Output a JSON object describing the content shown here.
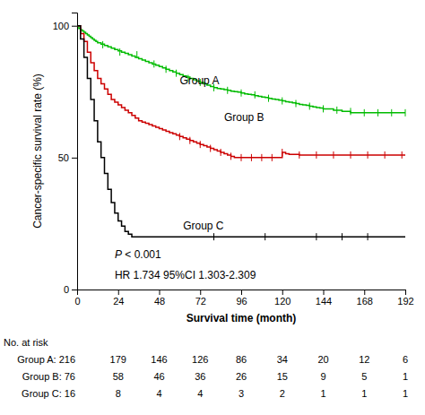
{
  "chart_data": {
    "type": "step",
    "xlabel": "Survival time (month)",
    "ylabel": "Cancer-specific survival rate (%)",
    "xlim": [
      0,
      192
    ],
    "ylim": [
      0,
      105
    ],
    "xticks": [
      0,
      24,
      48,
      72,
      96,
      120,
      144,
      168,
      192
    ],
    "yticks": [
      0,
      50,
      100
    ],
    "series": [
      {
        "name": "Group A",
        "color": "#00bb00",
        "label_x": 60,
        "label_y": 79,
        "x": [
          0,
          1,
          2,
          3,
          4,
          5,
          6,
          7,
          8,
          9,
          10,
          11,
          12,
          14,
          16,
          18,
          20,
          22,
          24,
          26,
          28,
          30,
          32,
          34,
          36,
          38,
          40,
          42,
          44,
          46,
          48,
          50,
          52,
          54,
          56,
          58,
          60,
          62,
          64,
          66,
          68,
          70,
          72,
          74,
          76,
          78,
          80,
          82,
          84,
          86,
          88,
          90,
          92,
          94,
          96,
          98,
          100,
          102,
          104,
          106,
          108,
          110,
          112,
          114,
          116,
          118,
          120,
          122,
          124,
          126,
          128,
          130,
          132,
          134,
          136,
          138,
          140,
          142,
          144,
          150,
          155,
          160,
          165,
          170,
          175,
          180,
          185,
          190,
          192
        ],
        "values": [
          100,
          99,
          98.5,
          98,
          97.5,
          97,
          96.5,
          96,
          95.5,
          95,
          94.5,
          94,
          93.5,
          93,
          92.5,
          92,
          91.5,
          91,
          90.5,
          90,
          89.5,
          89,
          88.5,
          88,
          87.5,
          87,
          86.5,
          86,
          85.5,
          85,
          84.5,
          84,
          83.5,
          83,
          82.5,
          82,
          81.5,
          81,
          80.5,
          80,
          79.5,
          79,
          78.5,
          78,
          77.5,
          77,
          76.5,
          76.2,
          76,
          75.8,
          75.5,
          75.2,
          75,
          74.8,
          74.5,
          74.2,
          74,
          73.8,
          73.5,
          73.2,
          73,
          72.8,
          72.5,
          72.2,
          72,
          71.8,
          71.5,
          71.2,
          71,
          70.8,
          70.5,
          70.2,
          70,
          69.8,
          69.5,
          69.2,
          69,
          68.8,
          68.5,
          68,
          67.5,
          67,
          67,
          67,
          67,
          67,
          67,
          67,
          67
        ],
        "censor_x": [
          15,
          25,
          35,
          45,
          52,
          58,
          65,
          72,
          80,
          88,
          96,
          104,
          112,
          120,
          128,
          136,
          144,
          152,
          160,
          168,
          176,
          184,
          192
        ],
        "censor_y": [
          92.8,
          90,
          89,
          85.5,
          83.5,
          82,
          80,
          78.5,
          76.5,
          75.5,
          74.5,
          73.8,
          72.5,
          71.5,
          70.5,
          69.5,
          68.5,
          68,
          67.5,
          67,
          67,
          67,
          67
        ]
      },
      {
        "name": "Group B",
        "color": "#cc0000",
        "label_x": 86,
        "label_y": 65,
        "x": [
          0,
          2,
          4,
          6,
          8,
          10,
          12,
          14,
          16,
          18,
          20,
          22,
          24,
          26,
          28,
          30,
          32,
          34,
          36,
          38,
          40,
          42,
          44,
          46,
          48,
          50,
          52,
          54,
          56,
          58,
          60,
          62,
          64,
          66,
          68,
          70,
          72,
          74,
          76,
          78,
          80,
          82,
          84,
          86,
          88,
          90,
          92,
          94,
          96,
          98,
          100,
          102,
          104,
          106,
          108,
          110,
          112,
          114,
          116,
          118,
          120,
          122,
          124,
          130,
          132,
          135,
          140,
          145,
          150,
          155,
          160,
          165,
          170,
          175,
          180,
          185,
          190,
          192
        ],
        "values": [
          100,
          97,
          94,
          90,
          86,
          83,
          80,
          78,
          76,
          74,
          72,
          71,
          70,
          69,
          68,
          67,
          66,
          65,
          64,
          63.5,
          63,
          62.5,
          62,
          61.5,
          61,
          60.5,
          60,
          59.5,
          59,
          58.5,
          58,
          57.5,
          57,
          56.5,
          56,
          55.5,
          55,
          54.5,
          54,
          53.5,
          53,
          52.5,
          52,
          51.5,
          51,
          50.5,
          50,
          50,
          50,
          50,
          50,
          50,
          50,
          50,
          50,
          50,
          50,
          50,
          50,
          50,
          52,
          51.5,
          51.2,
          51,
          51,
          51,
          51,
          51,
          51,
          51,
          51,
          51,
          51,
          51,
          51,
          51,
          51,
          51
        ],
        "censor_x": [
          60,
          66,
          72,
          78,
          84,
          90,
          96,
          102,
          108,
          114,
          120,
          130,
          140,
          150,
          160,
          170,
          180,
          190
        ],
        "censor_y": [
          58,
          56.5,
          55,
          53.5,
          52,
          50.5,
          50,
          50,
          50,
          50,
          52,
          51,
          51,
          51,
          51,
          51,
          51,
          51
        ]
      },
      {
        "name": "Group C",
        "color": "#000000",
        "label_x": 62,
        "label_y": 24,
        "x": [
          0,
          2,
          4,
          6,
          8,
          10,
          12,
          14,
          16,
          18,
          20,
          22,
          24,
          26,
          28,
          30,
          32,
          34,
          36,
          40,
          45,
          50,
          55,
          60,
          65,
          70,
          75,
          80,
          85,
          90,
          95,
          100,
          110,
          120,
          130,
          140,
          150,
          160,
          170,
          180,
          190,
          192
        ],
        "values": [
          100,
          95,
          88,
          80,
          72,
          64,
          56,
          50,
          44,
          38,
          33,
          29,
          26,
          24,
          22,
          21,
          20,
          20,
          20,
          20,
          20,
          20,
          20,
          20,
          20,
          20,
          20,
          20,
          20,
          20,
          20,
          20,
          20,
          20,
          20,
          20,
          20,
          20,
          20,
          20,
          20,
          20
        ],
        "censor_x": [
          80,
          110,
          140,
          155,
          170
        ],
        "censor_y": [
          20,
          20,
          20,
          20,
          20
        ]
      }
    ],
    "annotations": [
      {
        "parts": [
          "P",
          " < 0.001"
        ],
        "x": 22,
        "y": 13
      },
      {
        "text": "HR 1.734 95%CI 1.303-2.309",
        "x": 22,
        "y": 5
      }
    ],
    "risk_table": {
      "header": "No. at risk",
      "times": [
        24,
        48,
        72,
        96,
        120,
        144,
        168,
        192
      ],
      "rows": [
        {
          "label": "Group A: 216",
          "values": [
            179,
            146,
            126,
            86,
            34,
            20,
            12,
            6
          ]
        },
        {
          "label": "Group B: 76",
          "values": [
            58,
            46,
            36,
            26,
            15,
            9,
            5,
            1
          ]
        },
        {
          "label": "Group C: 16",
          "values": [
            8,
            4,
            4,
            3,
            2,
            1,
            1,
            1
          ]
        }
      ]
    }
  }
}
